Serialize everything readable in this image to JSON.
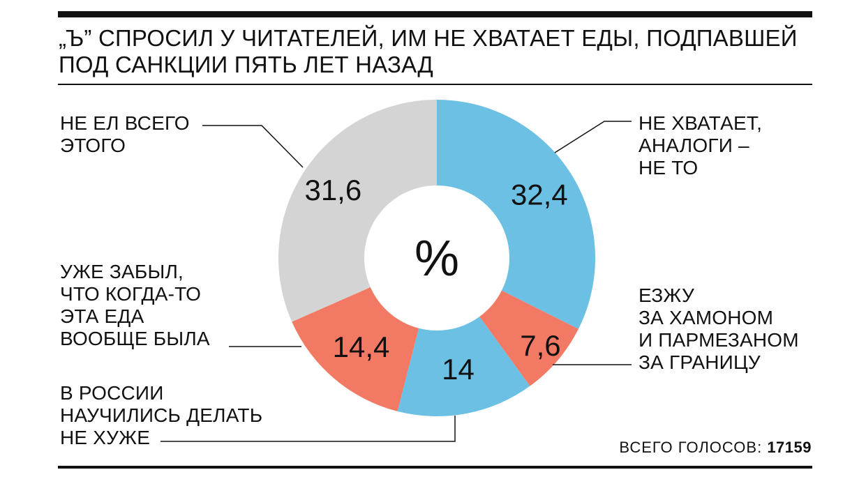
{
  "title": {
    "line1": "„Ъ” СПРОСИЛ У ЧИТАТЕЛЕЙ, ИМ НЕ ХВАТАЕТ ЕДЫ, ПОДПАВШЕЙ",
    "line2": "ПОД САНКЦИИ ПЯТЬ ЛЕТ НАЗАД"
  },
  "center_label": "%",
  "colors": {
    "blue": "#6cc0e4",
    "salmon": "#f27a64",
    "gray": "#d4d4d4",
    "ink": "#111111"
  },
  "labels": {
    "not_enough": [
      "НЕ ХВАТАЕТ,",
      "АНАЛОГИ –",
      "НЕ ТО"
    ],
    "travel_abroad": [
      "ЕЗЖУ",
      "ЗА ХАМОНОМ",
      "И ПАРМЕЗАНОМ",
      "ЗА ГРАНИЦУ"
    ],
    "russia_learned": [
      "В РОССИИ",
      "НАУЧИЛИСЬ ДЕЛАТЬ",
      "НЕ ХУЖЕ"
    ],
    "forgot": [
      "УЖЕ ЗАБЫЛ,",
      "ЧТО КОГДА-ТО",
      "ЭТА ЕДА",
      "ВООБЩЕ БЫЛА"
    ],
    "never_ate": [
      "НЕ ЕЛ ВСЕГО",
      "ЭТОГО"
    ]
  },
  "footer": {
    "votes_label": "ВСЕГО ГОЛОСОВ:",
    "votes_value": "17159"
  },
  "chart_data": {
    "type": "pie",
    "unit": "%",
    "categories": [
      "НЕ ХВАТАЕТ, АНАЛОГИ – НЕ ТО",
      "ЕЗЖУ ЗА ХАМОНОМ И ПАРМЕЗАНОМ ЗА ГРАНИЦУ",
      "В РОССИИ НАУЧИЛИСЬ ДЕЛАТЬ НЕ ХУЖЕ",
      "УЖЕ ЗАБЫЛ, ЧТО КОГДА-ТО ЭТА ЕДА ВООБЩЕ БЫЛА",
      "НЕ ЕЛ ВСЕГО ЭТОГО"
    ],
    "values": [
      32.4,
      7.6,
      14,
      14.4,
      31.6
    ],
    "value_labels": [
      "32,4",
      "7,6",
      "14",
      "14,4",
      "31,6"
    ],
    "slice_colors": [
      "#6cc0e4",
      "#f27a64",
      "#6cc0e4",
      "#f27a64",
      "#d4d4d4"
    ]
  }
}
